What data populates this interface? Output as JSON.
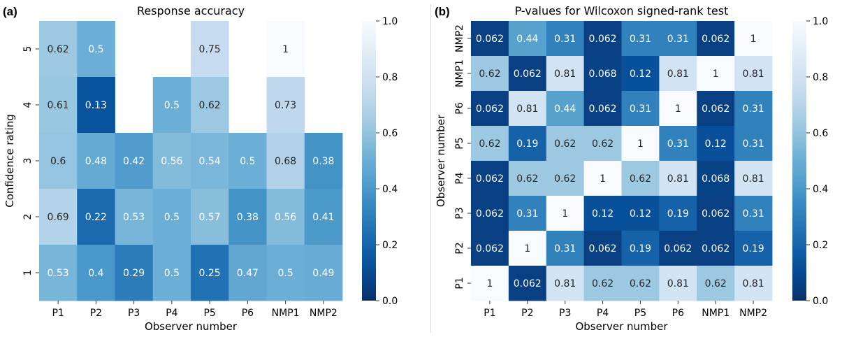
{
  "chart_data": [
    {
      "type": "heatmap",
      "panel_label": "(a)",
      "title": "Response accuracy",
      "xlabel": "Observer number",
      "ylabel": "Confidence rating",
      "x_categories": [
        "P1",
        "P2",
        "P3",
        "P4",
        "P5",
        "P6",
        "NMP1",
        "NMP2"
      ],
      "y_categories": [
        "5",
        "4",
        "3",
        "2",
        "1"
      ],
      "values": [
        [
          0.62,
          0.5,
          null,
          null,
          0.75,
          null,
          1,
          null
        ],
        [
          0.61,
          0.13,
          null,
          0.5,
          0.62,
          null,
          0.73,
          null
        ],
        [
          0.6,
          0.48,
          0.42,
          0.56,
          0.54,
          0.5,
          0.68,
          0.38
        ],
        [
          0.69,
          0.22,
          0.53,
          0.5,
          0.57,
          0.38,
          0.56,
          0.41
        ],
        [
          0.53,
          0.4,
          0.29,
          0.5,
          0.25,
          0.47,
          0.5,
          0.49
        ]
      ],
      "labels": [
        [
          "0.62",
          "0.5",
          "",
          "",
          "0.75",
          "",
          "1",
          ""
        ],
        [
          "0.61",
          "0.13",
          "",
          "0.5",
          "0.62",
          "",
          "0.73",
          ""
        ],
        [
          "0.6",
          "0.48",
          "0.42",
          "0.56",
          "0.54",
          "0.5",
          "0.68",
          "0.38"
        ],
        [
          "0.69",
          "0.22",
          "0.53",
          "0.5",
          "0.57",
          "0.38",
          "0.56",
          "0.41"
        ],
        [
          "0.53",
          "0.4",
          "0.29",
          "0.5",
          "0.25",
          "0.47",
          "0.5",
          "0.49"
        ]
      ],
      "colorbar": {
        "range": [
          0.0,
          1.0
        ],
        "ticks": [
          "0.0",
          "0.2",
          "0.4",
          "0.6",
          "0.8",
          "1.0"
        ]
      },
      "colormap": "Blues_r",
      "colors": {
        "low": "#08306b",
        "high": "#f7fbff"
      }
    },
    {
      "type": "heatmap",
      "panel_label": "(b)",
      "title": "P-values for Wilcoxon signed-rank test",
      "xlabel": "Observer number",
      "ylabel": "Observer number",
      "x_categories": [
        "P1",
        "P2",
        "P3",
        "P4",
        "P5",
        "P6",
        "NMP1",
        "NMP2"
      ],
      "y_categories": [
        "NMP2",
        "NMP1",
        "P6",
        "P5",
        "P4",
        "P3",
        "P2",
        "P1"
      ],
      "values": [
        [
          0.062,
          0.44,
          0.31,
          0.062,
          0.31,
          0.31,
          0.062,
          1
        ],
        [
          0.62,
          0.062,
          0.81,
          0.068,
          0.12,
          0.81,
          1,
          0.81
        ],
        [
          0.062,
          0.81,
          0.44,
          0.062,
          0.31,
          1,
          0.062,
          0.31
        ],
        [
          0.62,
          0.19,
          0.62,
          0.62,
          1,
          0.31,
          0.12,
          0.31
        ],
        [
          0.062,
          0.62,
          0.62,
          1,
          0.62,
          0.81,
          0.068,
          0.81
        ],
        [
          0.062,
          0.31,
          1,
          0.12,
          0.12,
          0.19,
          0.062,
          0.31
        ],
        [
          0.062,
          1,
          0.31,
          0.062,
          0.19,
          0.062,
          0.062,
          0.19
        ],
        [
          1,
          0.062,
          0.81,
          0.62,
          0.62,
          0.81,
          0.62,
          0.81
        ]
      ],
      "labels": [
        [
          "0.062",
          "0.44",
          "0.31",
          "0.062",
          "0.31",
          "0.31",
          "0.062",
          "1"
        ],
        [
          "0.62",
          "0.062",
          "0.81",
          "0.068",
          "0.12",
          "0.81",
          "1",
          "0.81"
        ],
        [
          "0.062",
          "0.81",
          "0.44",
          "0.062",
          "0.31",
          "1",
          "0.062",
          "0.31"
        ],
        [
          "0.62",
          "0.19",
          "0.62",
          "0.62",
          "1",
          "0.31",
          "0.12",
          "0.31"
        ],
        [
          "0.062",
          "0.62",
          "0.62",
          "1",
          "0.62",
          "0.81",
          "0.068",
          "0.81"
        ],
        [
          "0.062",
          "0.31",
          "1",
          "0.12",
          "0.12",
          "0.19",
          "0.062",
          "0.31"
        ],
        [
          "0.062",
          "1",
          "0.31",
          "0.062",
          "0.19",
          "0.062",
          "0.062",
          "0.19"
        ],
        [
          "1",
          "0.062",
          "0.81",
          "0.62",
          "0.62",
          "0.81",
          "0.62",
          "0.81"
        ]
      ],
      "colorbar": {
        "range": [
          0.0,
          1.0
        ],
        "ticks": [
          "0.0",
          "0.2",
          "0.4",
          "0.6",
          "0.8",
          "1.0"
        ]
      },
      "colormap": "Blues_r",
      "colors": {
        "low": "#08306b",
        "high": "#f7fbff"
      }
    }
  ]
}
